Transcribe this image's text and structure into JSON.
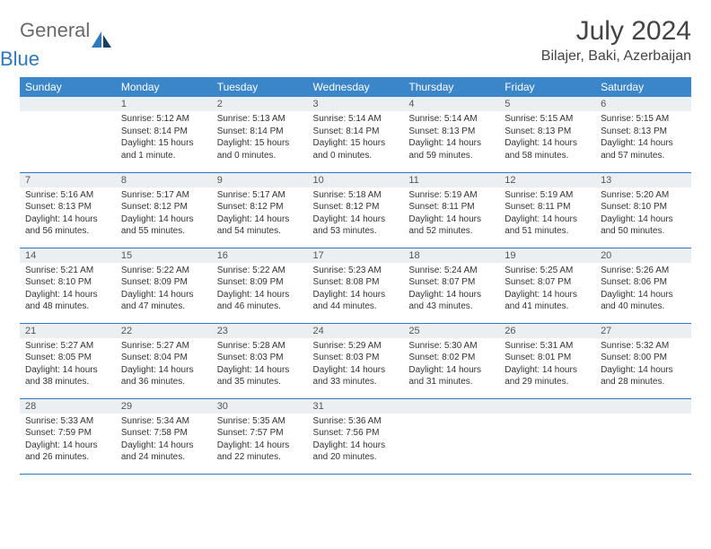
{
  "brand": {
    "word1": "General",
    "word2": "Blue"
  },
  "title": "July 2024",
  "location": "Bilajer, Baki, Azerbaijan",
  "colors": {
    "header_bg": "#3b86c8",
    "header_text": "#ffffff",
    "daynum_bg": "#eceff1",
    "border": "#2f78bd",
    "brand_gray": "#6a6a6a",
    "brand_blue": "#2f78bd"
  },
  "day_headers": [
    "Sunday",
    "Monday",
    "Tuesday",
    "Wednesday",
    "Thursday",
    "Friday",
    "Saturday"
  ],
  "weeks": [
    [
      null,
      {
        "n": "1",
        "sr": "Sunrise: 5:12 AM",
        "ss": "Sunset: 8:14 PM",
        "d1": "Daylight: 15 hours",
        "d2": "and 1 minute."
      },
      {
        "n": "2",
        "sr": "Sunrise: 5:13 AM",
        "ss": "Sunset: 8:14 PM",
        "d1": "Daylight: 15 hours",
        "d2": "and 0 minutes."
      },
      {
        "n": "3",
        "sr": "Sunrise: 5:14 AM",
        "ss": "Sunset: 8:14 PM",
        "d1": "Daylight: 15 hours",
        "d2": "and 0 minutes."
      },
      {
        "n": "4",
        "sr": "Sunrise: 5:14 AM",
        "ss": "Sunset: 8:13 PM",
        "d1": "Daylight: 14 hours",
        "d2": "and 59 minutes."
      },
      {
        "n": "5",
        "sr": "Sunrise: 5:15 AM",
        "ss": "Sunset: 8:13 PM",
        "d1": "Daylight: 14 hours",
        "d2": "and 58 minutes."
      },
      {
        "n": "6",
        "sr": "Sunrise: 5:15 AM",
        "ss": "Sunset: 8:13 PM",
        "d1": "Daylight: 14 hours",
        "d2": "and 57 minutes."
      }
    ],
    [
      {
        "n": "7",
        "sr": "Sunrise: 5:16 AM",
        "ss": "Sunset: 8:13 PM",
        "d1": "Daylight: 14 hours",
        "d2": "and 56 minutes."
      },
      {
        "n": "8",
        "sr": "Sunrise: 5:17 AM",
        "ss": "Sunset: 8:12 PM",
        "d1": "Daylight: 14 hours",
        "d2": "and 55 minutes."
      },
      {
        "n": "9",
        "sr": "Sunrise: 5:17 AM",
        "ss": "Sunset: 8:12 PM",
        "d1": "Daylight: 14 hours",
        "d2": "and 54 minutes."
      },
      {
        "n": "10",
        "sr": "Sunrise: 5:18 AM",
        "ss": "Sunset: 8:12 PM",
        "d1": "Daylight: 14 hours",
        "d2": "and 53 minutes."
      },
      {
        "n": "11",
        "sr": "Sunrise: 5:19 AM",
        "ss": "Sunset: 8:11 PM",
        "d1": "Daylight: 14 hours",
        "d2": "and 52 minutes."
      },
      {
        "n": "12",
        "sr": "Sunrise: 5:19 AM",
        "ss": "Sunset: 8:11 PM",
        "d1": "Daylight: 14 hours",
        "d2": "and 51 minutes."
      },
      {
        "n": "13",
        "sr": "Sunrise: 5:20 AM",
        "ss": "Sunset: 8:10 PM",
        "d1": "Daylight: 14 hours",
        "d2": "and 50 minutes."
      }
    ],
    [
      {
        "n": "14",
        "sr": "Sunrise: 5:21 AM",
        "ss": "Sunset: 8:10 PM",
        "d1": "Daylight: 14 hours",
        "d2": "and 48 minutes."
      },
      {
        "n": "15",
        "sr": "Sunrise: 5:22 AM",
        "ss": "Sunset: 8:09 PM",
        "d1": "Daylight: 14 hours",
        "d2": "and 47 minutes."
      },
      {
        "n": "16",
        "sr": "Sunrise: 5:22 AM",
        "ss": "Sunset: 8:09 PM",
        "d1": "Daylight: 14 hours",
        "d2": "and 46 minutes."
      },
      {
        "n": "17",
        "sr": "Sunrise: 5:23 AM",
        "ss": "Sunset: 8:08 PM",
        "d1": "Daylight: 14 hours",
        "d2": "and 44 minutes."
      },
      {
        "n": "18",
        "sr": "Sunrise: 5:24 AM",
        "ss": "Sunset: 8:07 PM",
        "d1": "Daylight: 14 hours",
        "d2": "and 43 minutes."
      },
      {
        "n": "19",
        "sr": "Sunrise: 5:25 AM",
        "ss": "Sunset: 8:07 PM",
        "d1": "Daylight: 14 hours",
        "d2": "and 41 minutes."
      },
      {
        "n": "20",
        "sr": "Sunrise: 5:26 AM",
        "ss": "Sunset: 8:06 PM",
        "d1": "Daylight: 14 hours",
        "d2": "and 40 minutes."
      }
    ],
    [
      {
        "n": "21",
        "sr": "Sunrise: 5:27 AM",
        "ss": "Sunset: 8:05 PM",
        "d1": "Daylight: 14 hours",
        "d2": "and 38 minutes."
      },
      {
        "n": "22",
        "sr": "Sunrise: 5:27 AM",
        "ss": "Sunset: 8:04 PM",
        "d1": "Daylight: 14 hours",
        "d2": "and 36 minutes."
      },
      {
        "n": "23",
        "sr": "Sunrise: 5:28 AM",
        "ss": "Sunset: 8:03 PM",
        "d1": "Daylight: 14 hours",
        "d2": "and 35 minutes."
      },
      {
        "n": "24",
        "sr": "Sunrise: 5:29 AM",
        "ss": "Sunset: 8:03 PM",
        "d1": "Daylight: 14 hours",
        "d2": "and 33 minutes."
      },
      {
        "n": "25",
        "sr": "Sunrise: 5:30 AM",
        "ss": "Sunset: 8:02 PM",
        "d1": "Daylight: 14 hours",
        "d2": "and 31 minutes."
      },
      {
        "n": "26",
        "sr": "Sunrise: 5:31 AM",
        "ss": "Sunset: 8:01 PM",
        "d1": "Daylight: 14 hours",
        "d2": "and 29 minutes."
      },
      {
        "n": "27",
        "sr": "Sunrise: 5:32 AM",
        "ss": "Sunset: 8:00 PM",
        "d1": "Daylight: 14 hours",
        "d2": "and 28 minutes."
      }
    ],
    [
      {
        "n": "28",
        "sr": "Sunrise: 5:33 AM",
        "ss": "Sunset: 7:59 PM",
        "d1": "Daylight: 14 hours",
        "d2": "and 26 minutes."
      },
      {
        "n": "29",
        "sr": "Sunrise: 5:34 AM",
        "ss": "Sunset: 7:58 PM",
        "d1": "Daylight: 14 hours",
        "d2": "and 24 minutes."
      },
      {
        "n": "30",
        "sr": "Sunrise: 5:35 AM",
        "ss": "Sunset: 7:57 PM",
        "d1": "Daylight: 14 hours",
        "d2": "and 22 minutes."
      },
      {
        "n": "31",
        "sr": "Sunrise: 5:36 AM",
        "ss": "Sunset: 7:56 PM",
        "d1": "Daylight: 14 hours",
        "d2": "and 20 minutes."
      },
      null,
      null,
      null
    ]
  ]
}
